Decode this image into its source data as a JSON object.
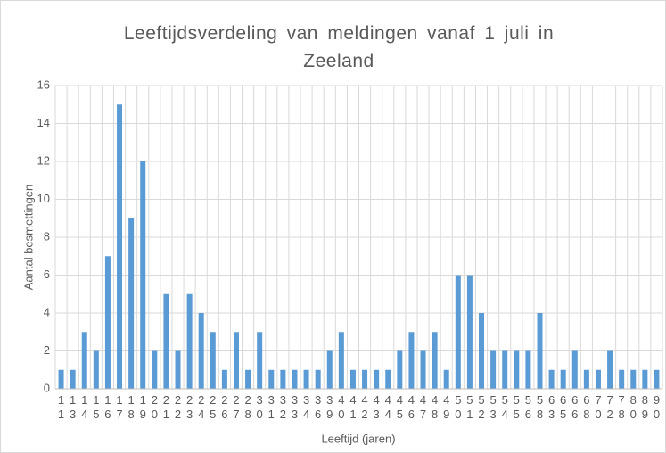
{
  "chart_data": {
    "type": "bar",
    "title": "Leeftijdsverdeling van meldingen vanaf 1 juli in Zeeland",
    "x_label": "Leeftijd (jaren)",
    "y_label": "Aantal besmettingen",
    "categories": [
      "11",
      "13",
      "14",
      "15",
      "16",
      "17",
      "18",
      "19",
      "20",
      "21",
      "22",
      "23",
      "24",
      "25",
      "26",
      "27",
      "28",
      "30",
      "31",
      "32",
      "33",
      "34",
      "36",
      "39",
      "40",
      "41",
      "42",
      "43",
      "44",
      "45",
      "46",
      "47",
      "48",
      "49",
      "50",
      "51",
      "52",
      "53",
      "54",
      "55",
      "56",
      "58",
      "63",
      "65",
      "66",
      "68",
      "70",
      "72",
      "78",
      "80",
      "89",
      "90"
    ],
    "values": [
      1,
      1,
      3,
      2,
      7,
      15,
      9,
      12,
      2,
      5,
      2,
      5,
      4,
      3,
      1,
      3,
      1,
      3,
      1,
      1,
      1,
      1,
      1,
      2,
      3,
      1,
      1,
      1,
      1,
      2,
      3,
      2,
      3,
      1,
      6,
      6,
      4,
      2,
      2,
      2,
      2,
      4,
      1,
      1,
      2,
      1,
      1,
      2,
      1,
      1,
      1,
      1
    ],
    "color": "#5b9bd5",
    "ylim": [
      0,
      16
    ],
    "yticks": [
      0,
      2,
      4,
      6,
      8,
      10,
      12,
      14,
      16
    ],
    "grid": true
  }
}
